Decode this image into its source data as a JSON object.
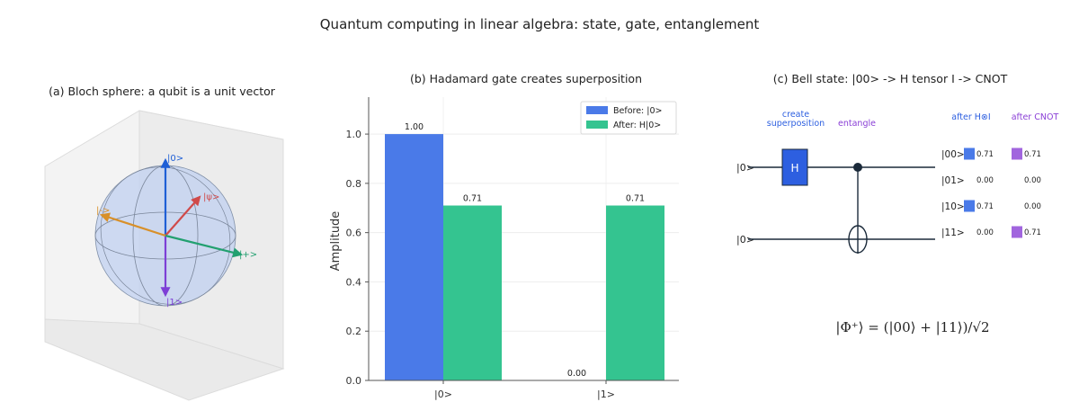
{
  "suptitle": "Quantum computing in linear algebra: state, gate, entanglement",
  "colors": {
    "before": "#4a7ae8",
    "after": "#34c490",
    "ket0_vec": "#1f5fd6",
    "ket1_vec": "#7d3fd6",
    "psi_vec": "#d04a4a",
    "minus_vec": "#d8902a",
    "plus_vec": "#22a070",
    "h_gate": "#2d5fe0",
    "entangle": "#8a3fd6",
    "sphere": "#c5d3f0"
  },
  "chart_data": [
    {
      "type": "other",
      "title": "(a) Bloch sphere: a qubit is a unit vector",
      "vectors": [
        {
          "label": "|0>",
          "name": "ket0"
        },
        {
          "label": "|1>",
          "name": "ket1"
        },
        {
          "label": "|ψ>",
          "name": "psi"
        },
        {
          "label": "|->",
          "name": "minus"
        },
        {
          "label": "|+>",
          "name": "plus"
        }
      ]
    },
    {
      "type": "bar",
      "title": "(b) Hadamard gate creates superposition",
      "categories": [
        "|0>",
        "|1>"
      ],
      "series": [
        {
          "name": "Before: |0>",
          "values": [
            1.0,
            0.0
          ],
          "labels": [
            "1.00",
            "0.00"
          ]
        },
        {
          "name": "After: H|0>",
          "values": [
            0.71,
            0.71
          ],
          "labels": [
            "0.71",
            "0.71"
          ]
        }
      ],
      "ylabel": "Amplitude",
      "ylim": [
        0,
        1.15
      ],
      "yticks": [
        "0.0",
        "0.2",
        "0.4",
        "0.6",
        "0.8",
        "1.0"
      ],
      "legend": "top-right",
      "grid": true
    },
    {
      "type": "diagram",
      "title": "(c) Bell state: |00> -> H tensor I -> CNOT",
      "wires": [
        "|0>",
        "|0>"
      ],
      "gate_label": "H",
      "step_create": "create\nsuperposition",
      "step_create_lines": [
        "create",
        "superposition"
      ],
      "step_entangle": "entangle",
      "col_after_h": "after H⊗I",
      "col_after_cnot": "after CNOT",
      "states": [
        {
          "label": "|00>",
          "after_h": 0.71,
          "after_h_text": "0.71",
          "after_cnot": 0.71,
          "after_cnot_text": "0.71"
        },
        {
          "label": "|01>",
          "after_h": 0.0,
          "after_h_text": "0.00",
          "after_cnot": 0.0,
          "after_cnot_text": "0.00"
        },
        {
          "label": "|10>",
          "after_h": 0.71,
          "after_h_text": "0.71",
          "after_cnot": 0.0,
          "after_cnot_text": "0.00"
        },
        {
          "label": "|11>",
          "after_h": 0.0,
          "after_h_text": "0.00",
          "after_cnot": 0.71,
          "after_cnot_text": "0.71"
        }
      ],
      "formula": "|Φ⁺⟩ = (|00⟩ + |11⟩)/√2"
    }
  ]
}
